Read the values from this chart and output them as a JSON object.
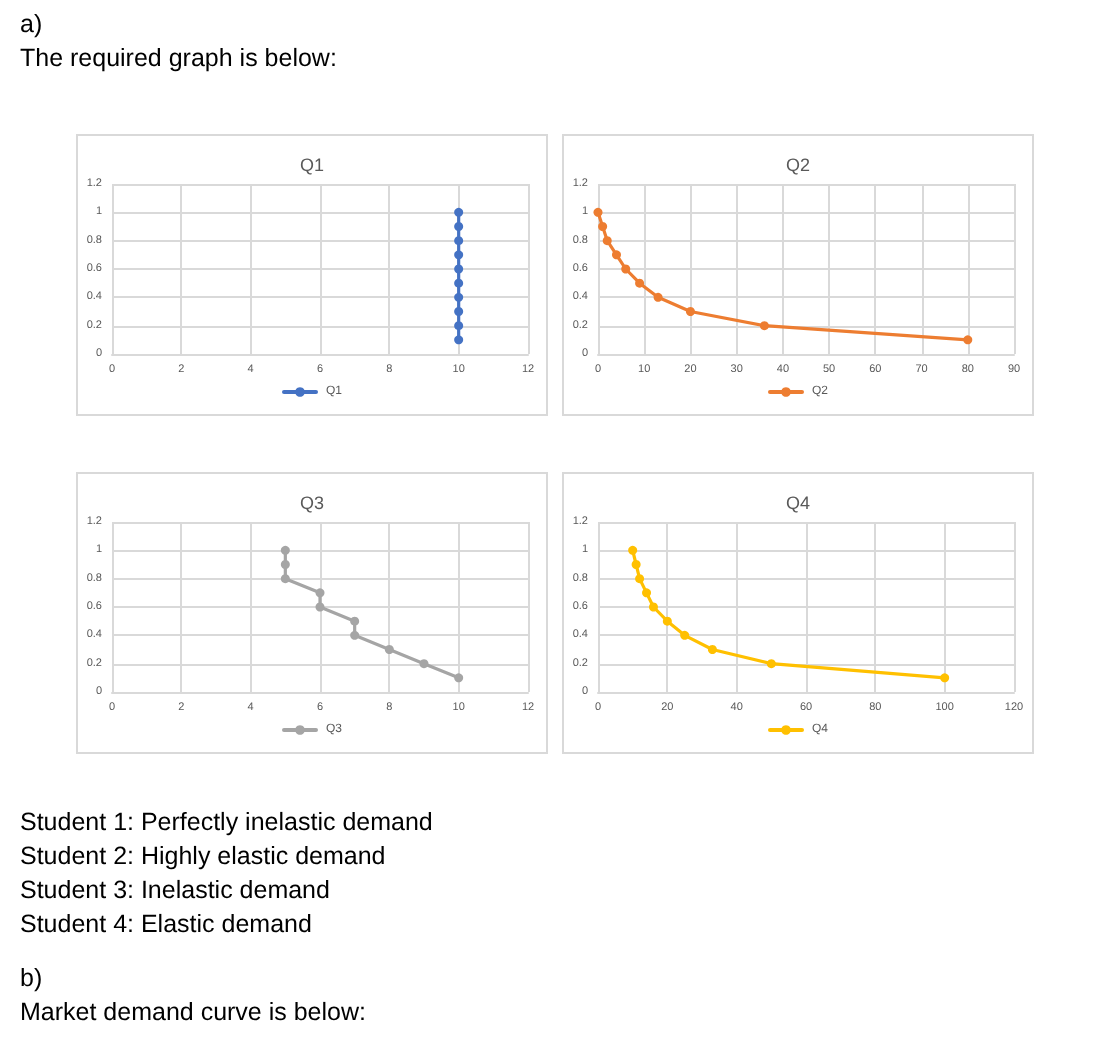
{
  "chart_data": [
    {
      "type": "other",
      "annotations": [
        "a)",
        "The required graph is below:"
      ]
    },
    {
      "type": "line",
      "title": "Q1",
      "x": [
        10,
        10,
        10,
        10,
        10,
        10,
        10,
        10,
        10,
        10
      ],
      "series": [
        {
          "name": "Q1",
          "color": "#4472c4",
          "values": [
            1,
            0.9,
            0.8,
            0.7,
            0.6,
            0.5,
            0.4,
            0.3,
            0.2,
            0.1
          ]
        }
      ],
      "xlim": [
        0,
        12
      ],
      "xticks": [
        0,
        2,
        4,
        6,
        8,
        10,
        12
      ],
      "ylim": [
        0,
        1.2
      ],
      "yticks": [
        0,
        0.2,
        0.4,
        0.6,
        0.8,
        1,
        1.2
      ],
      "grid": true,
      "legend": "bottom",
      "marker": "circle",
      "line_style": "solid"
    },
    {
      "type": "line",
      "title": "Q2",
      "x": [
        0,
        1,
        2,
        4,
        6,
        9,
        13,
        20,
        36,
        80
      ],
      "series": [
        {
          "name": "Q2",
          "color": "#ed7d31",
          "values": [
            1,
            0.9,
            0.8,
            0.7,
            0.6,
            0.5,
            0.4,
            0.3,
            0.2,
            0.1
          ]
        }
      ],
      "xlim": [
        0,
        90
      ],
      "xticks": [
        0,
        10,
        20,
        30,
        40,
        50,
        60,
        70,
        80,
        90
      ],
      "ylim": [
        0,
        1.2
      ],
      "yticks": [
        0,
        0.2,
        0.4,
        0.6,
        0.8,
        1,
        1.2
      ],
      "grid": true,
      "legend": "bottom",
      "marker": "circle",
      "line_style": "solid"
    },
    {
      "type": "line",
      "title": "Q3",
      "x": [
        5,
        5,
        5,
        6,
        6,
        7,
        7,
        8,
        9,
        10
      ],
      "series": [
        {
          "name": "Q3",
          "color": "#a5a5a5",
          "values": [
            1,
            0.9,
            0.8,
            0.7,
            0.6,
            0.5,
            0.4,
            0.3,
            0.2,
            0.1
          ]
        }
      ],
      "xlim": [
        0,
        12
      ],
      "xticks": [
        0,
        2,
        4,
        6,
        8,
        10,
        12
      ],
      "ylim": [
        0,
        1.2
      ],
      "yticks": [
        0,
        0.2,
        0.4,
        0.6,
        0.8,
        1,
        1.2
      ],
      "grid": true,
      "legend": "bottom",
      "marker": "circle",
      "line_style": "solid"
    },
    {
      "type": "line",
      "title": "Q4",
      "x": [
        10,
        11,
        12,
        14,
        16,
        20,
        25,
        33,
        50,
        100
      ],
      "series": [
        {
          "name": "Q4",
          "color": "#ffc000",
          "values": [
            1,
            0.9,
            0.8,
            0.7,
            0.6,
            0.5,
            0.4,
            0.3,
            0.2,
            0.1
          ]
        }
      ],
      "xlim": [
        0,
        120
      ],
      "xticks": [
        0,
        20,
        40,
        60,
        80,
        100,
        120
      ],
      "ylim": [
        0,
        1.2
      ],
      "yticks": [
        0,
        0.2,
        0.4,
        0.6,
        0.8,
        1,
        1.2
      ],
      "grid": true,
      "legend": "bottom",
      "marker": "circle",
      "line_style": "solid"
    },
    {
      "type": "other",
      "annotations": [
        "Student 1: Perfectly inelastic demand",
        "Student 2: Highly elastic demand",
        "Student 3: Inelastic demand",
        "Student 4: Elastic demand"
      ]
    },
    {
      "type": "other",
      "annotations": [
        "b)",
        "Market demand curve is below:"
      ]
    }
  ]
}
